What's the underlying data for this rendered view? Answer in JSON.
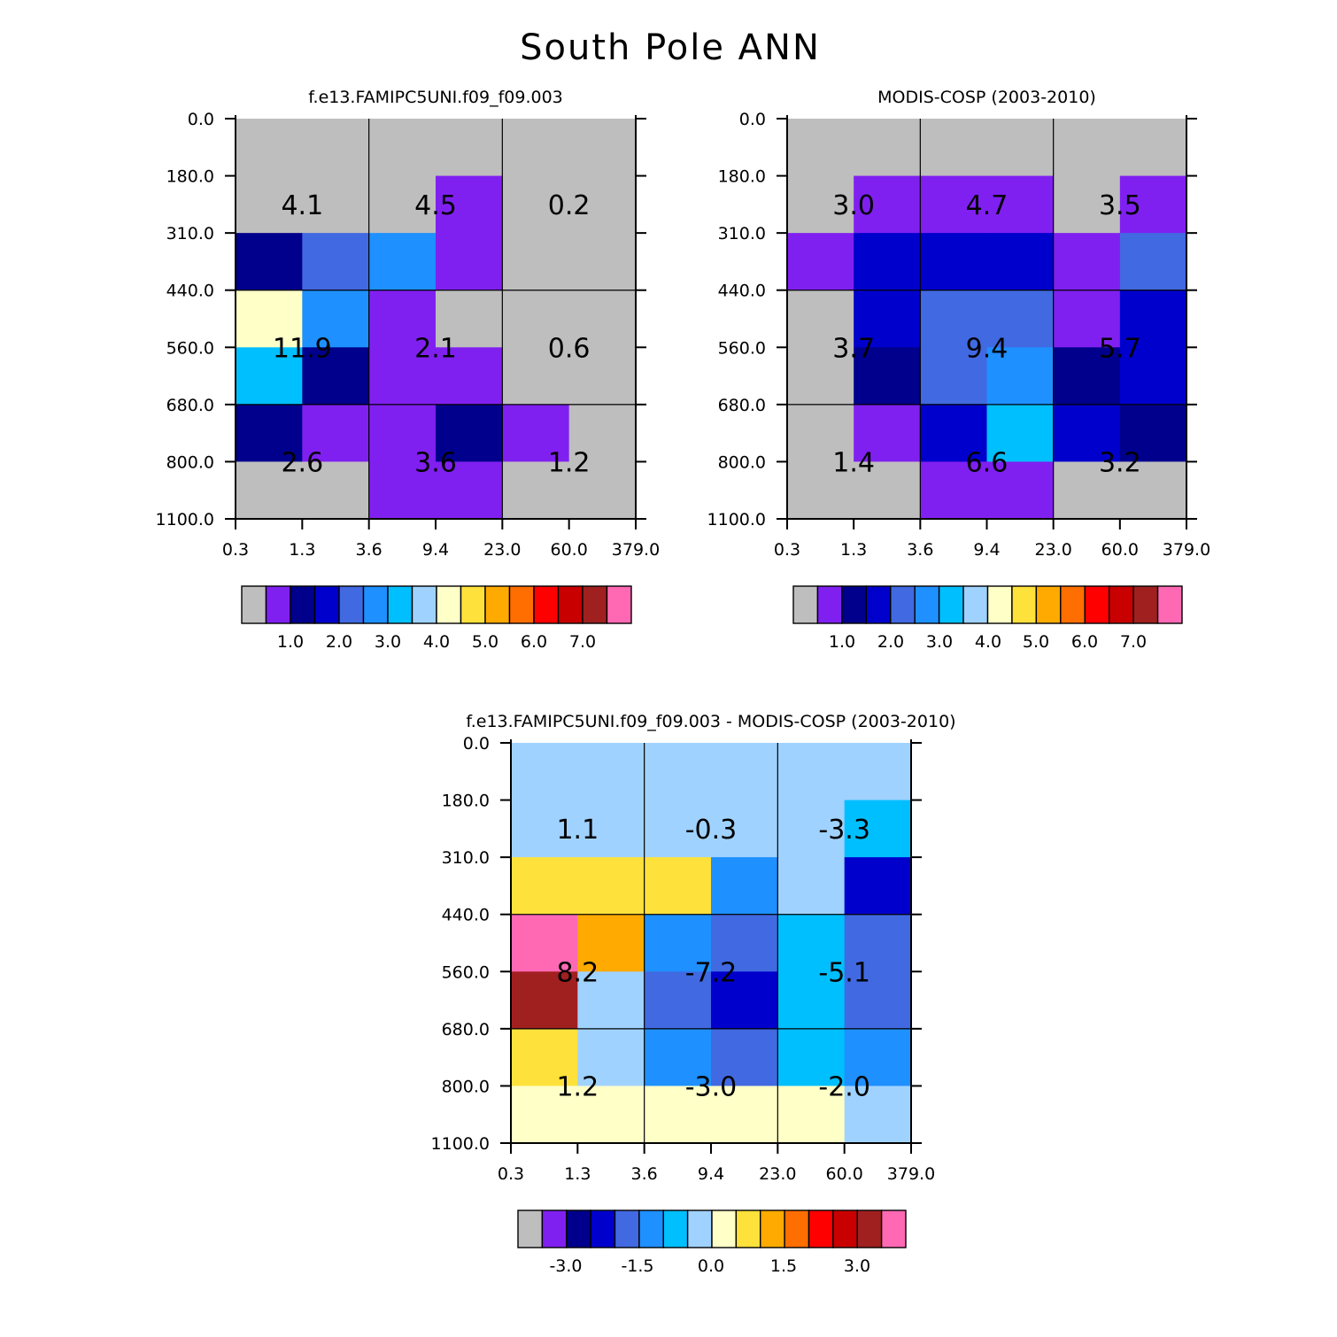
{
  "title": "South Pole ANN",
  "palette": [
    "#bebebe",
    "#8020f0",
    "#00008c",
    "#0000cd",
    "#4169e1",
    "#1e90ff",
    "#00bfff",
    "#a0d2ff",
    "#ffffc8",
    "#ffe13c",
    "#ffaa00",
    "#ff6e00",
    "#ff0000",
    "#c80000",
    "#a02020",
    "#ff69b4"
  ],
  "chart_data": [
    {
      "type": "heatmap",
      "title": "f.e13.FAMIPC5UNI.f09_f09.003",
      "x_ticks": [
        "0.3",
        "1.3",
        "3.6",
        "9.4",
        "23.0",
        "60.0",
        "379.0"
      ],
      "y_ticks": [
        "0.0",
        "180.0",
        "310.0",
        "440.0",
        "560.0",
        "680.0",
        "800.0",
        "1100.0"
      ],
      "cells": [
        [
          0,
          0,
          0,
          0,
          0,
          0
        ],
        [
          0,
          0,
          0,
          1,
          0,
          0
        ],
        [
          2,
          4,
          5,
          1,
          0,
          0
        ],
        [
          8,
          5,
          1,
          0,
          0,
          0
        ],
        [
          6,
          2,
          1,
          1,
          0,
          0
        ],
        [
          2,
          1,
          1,
          2,
          1,
          0
        ],
        [
          0,
          0,
          1,
          1,
          0,
          0
        ]
      ],
      "group_labels": [
        [
          "4.1",
          "4.5",
          "0.2"
        ],
        [
          "11.9",
          "2.1",
          "0.6"
        ],
        [
          "2.6",
          "3.6",
          "1.2"
        ]
      ],
      "colorbar_labels": [
        "1.0",
        "2.0",
        "3.0",
        "4.0",
        "5.0",
        "6.0",
        "7.0"
      ]
    },
    {
      "type": "heatmap",
      "title": "MODIS-COSP (2003-2010)",
      "x_ticks": [
        "0.3",
        "1.3",
        "3.6",
        "9.4",
        "23.0",
        "60.0",
        "379.0"
      ],
      "y_ticks": [
        "0.0",
        "180.0",
        "310.0",
        "440.0",
        "560.0",
        "680.0",
        "800.0",
        "1100.0"
      ],
      "cells": [
        [
          0,
          0,
          0,
          0,
          0,
          0
        ],
        [
          0,
          1,
          1,
          1,
          0,
          1
        ],
        [
          1,
          3,
          3,
          3,
          1,
          4
        ],
        [
          0,
          3,
          4,
          4,
          1,
          3
        ],
        [
          0,
          2,
          4,
          5,
          2,
          3
        ],
        [
          0,
          1,
          3,
          6,
          3,
          2
        ],
        [
          0,
          0,
          1,
          1,
          0,
          0
        ]
      ],
      "group_labels": [
        [
          "3.0",
          "4.7",
          "3.5"
        ],
        [
          "3.7",
          "9.4",
          "5.7"
        ],
        [
          "1.4",
          "6.6",
          "3.2"
        ]
      ],
      "colorbar_labels": [
        "1.0",
        "2.0",
        "3.0",
        "4.0",
        "5.0",
        "6.0",
        "7.0"
      ]
    },
    {
      "type": "heatmap",
      "title": "f.e13.FAMIPC5UNI.f09_f09.003 - MODIS-COSP (2003-2010)",
      "x_ticks": [
        "0.3",
        "1.3",
        "3.6",
        "9.4",
        "23.0",
        "60.0",
        "379.0"
      ],
      "y_ticks": [
        "0.0",
        "180.0",
        "310.0",
        "440.0",
        "560.0",
        "680.0",
        "800.0",
        "1100.0"
      ],
      "cells": [
        [
          7,
          7,
          7,
          7,
          7,
          7
        ],
        [
          7,
          7,
          7,
          7,
          7,
          6
        ],
        [
          9,
          9,
          9,
          5,
          7,
          3
        ],
        [
          15,
          10,
          5,
          4,
          6,
          4
        ],
        [
          14,
          7,
          4,
          3,
          6,
          4
        ],
        [
          9,
          7,
          5,
          4,
          6,
          5
        ],
        [
          8,
          8,
          8,
          8,
          8,
          7
        ]
      ],
      "group_labels": [
        [
          "1.1",
          "-0.3",
          "-3.3"
        ],
        [
          "8.2",
          "-7.2",
          "-5.1"
        ],
        [
          "1.2",
          "-3.0",
          "-2.0"
        ]
      ],
      "colorbar_labels": [
        "-3.0",
        "-1.5",
        "0.0",
        "1.5",
        "3.0"
      ]
    }
  ]
}
